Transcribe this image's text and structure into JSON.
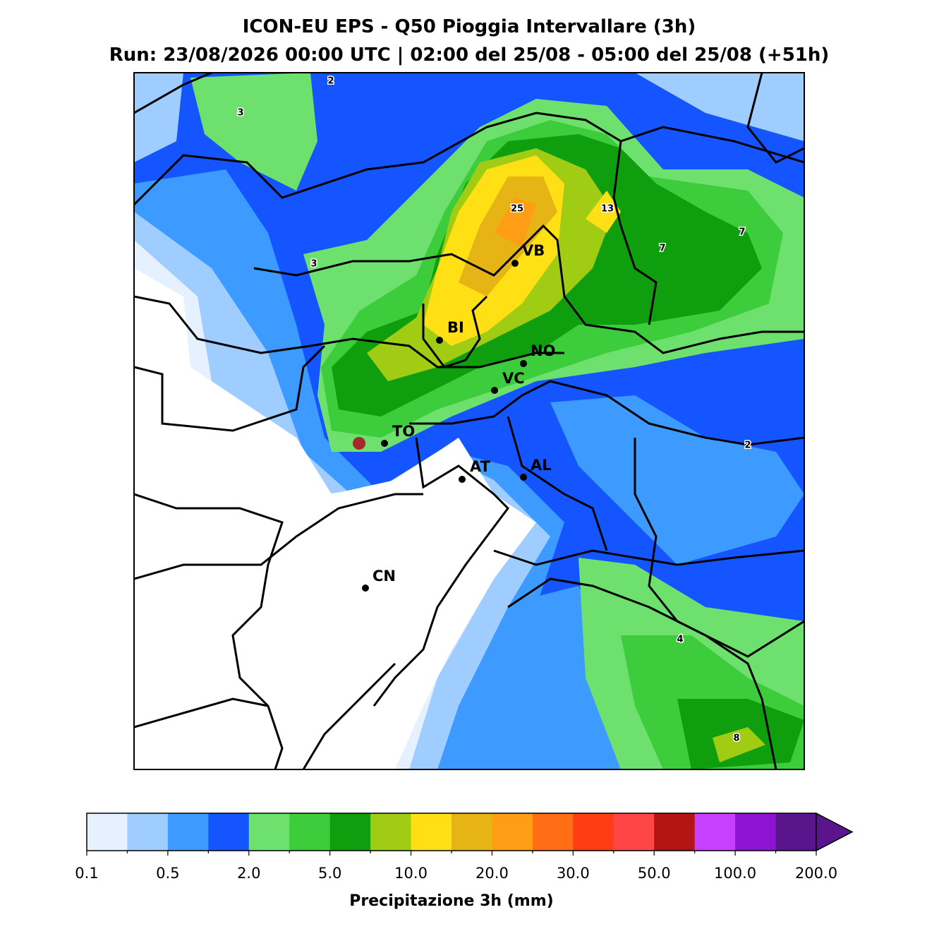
{
  "header": {
    "title": "ICON-EU EPS - Q50 Pioggia Intervallare (3h)",
    "subtitle": "Run: 23/08/2026 00:00 UTC | 02:00 del 25/08 - 05:00 del 25/08 (+51h)"
  },
  "map": {
    "cities": [
      "VB",
      "BI",
      "NO",
      "VC",
      "TO",
      "AT",
      "AL",
      "CN"
    ],
    "contour_labels": [
      "2",
      "3",
      "3",
      "25",
      "13",
      "7",
      "7",
      "2",
      "4",
      "8"
    ]
  },
  "colorbar": {
    "label": "Precipitazione 3h (mm)",
    "ticks": [
      "0.1",
      "0.5",
      "2.0",
      "5.0",
      "10.0",
      "20.0",
      "30.0",
      "50.0",
      "100.0",
      "200.0"
    ],
    "colors": [
      "#e6f1ff",
      "#a0cdff",
      "#3d9bff",
      "#1455ff",
      "#6ee06e",
      "#3ccc3c",
      "#0e9e0e",
      "#a0cc14",
      "#ffe014",
      "#e6b414",
      "#ff9e14",
      "#ff6e14",
      "#ff3c14",
      "#ff4646",
      "#b41414",
      "#c840ff",
      "#8c14d2",
      "#5a148c"
    ]
  }
}
